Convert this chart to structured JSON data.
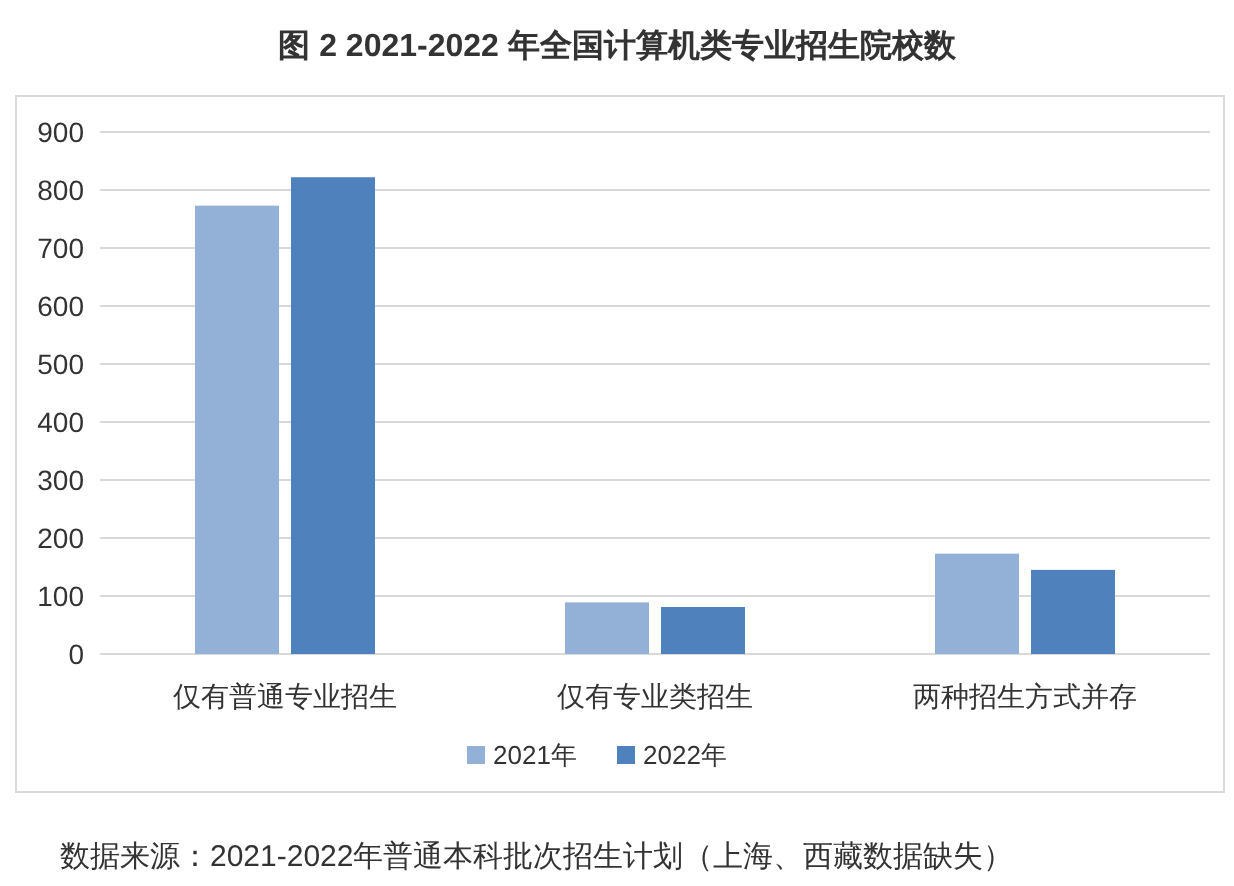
{
  "chart_data": {
    "type": "bar",
    "title": "图 2 2021-2022 年全国计算机类专业招生院校数",
    "categories": [
      "仅有普通专业招生",
      "仅有专业类招生",
      "两种招生方式并存"
    ],
    "series": [
      {
        "name": "2021年",
        "color": "#93b1d7",
        "values": [
          773,
          89,
          173
        ]
      },
      {
        "name": "2022年",
        "color": "#4f81bd",
        "values": [
          822,
          81,
          145
        ]
      }
    ],
    "ylim": [
      0,
      900
    ],
    "yticks": [
      0,
      100,
      200,
      300,
      400,
      500,
      600,
      700,
      800,
      900
    ],
    "grid": "y",
    "legend": "bottom",
    "annotations": [
      "数据来源：2021-2022年普通本科批次招生计划（上海、西藏数据缺失）"
    ]
  }
}
